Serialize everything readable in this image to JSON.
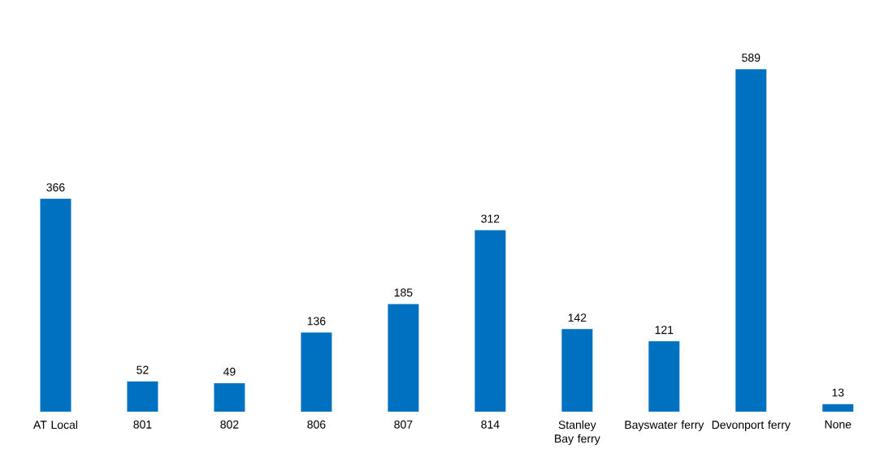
{
  "chart_data": {
    "type": "bar",
    "categories": [
      "AT Local",
      "801",
      "802",
      "806",
      "807",
      "814",
      "Stanley Bay ferry",
      "Bayswater ferry",
      "Devonport ferry",
      "None"
    ],
    "values": [
      366,
      52,
      49,
      136,
      185,
      312,
      142,
      121,
      589,
      13
    ],
    "color": "#0070c0",
    "data_labels": true
  }
}
